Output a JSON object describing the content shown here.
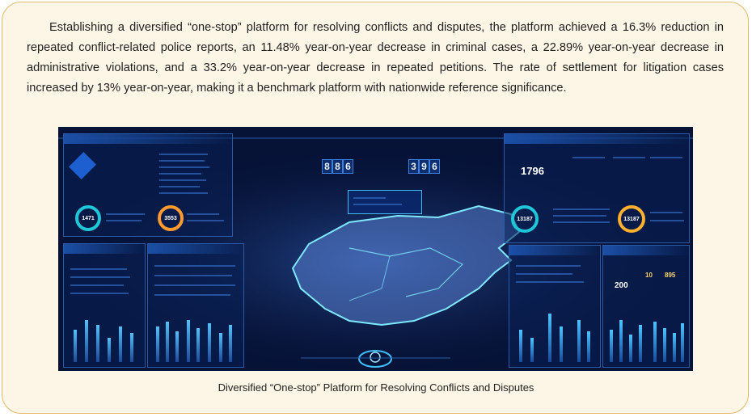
{
  "paragraph": "Establishing a diversified “one-stop” platform for resolving conflicts and disputes, the platform achieved a 16.3% reduction in repeated conflict-related police reports, an 11.48% year-on-year decrease in criminal cases, a 22.89% year-on-year decrease in administrative violations, and a 33.2% year-on-year decrease in repeated petitions. The rate of settlement for litigation cases increased by 13% year-on-year, making it a benchmark platform with nationwide reference significance.",
  "caption": "Diversified “One-stop” Platform for Resolving Conflicts and Disputes",
  "dashboard": {
    "ring_values": [
      "1471",
      "3553",
      "13187",
      "13187"
    ],
    "big_number_right": "1796",
    "counter_left_digits": [
      "8",
      "8",
      "6"
    ],
    "counter_right_digits": [
      "3",
      "9",
      "6"
    ],
    "metric_200": "200",
    "metric_895": "895",
    "metric_10": "10",
    "colors": {
      "accent": "#1fc6d8",
      "panel_border": "#2b5aa8",
      "background": "#061236"
    }
  }
}
